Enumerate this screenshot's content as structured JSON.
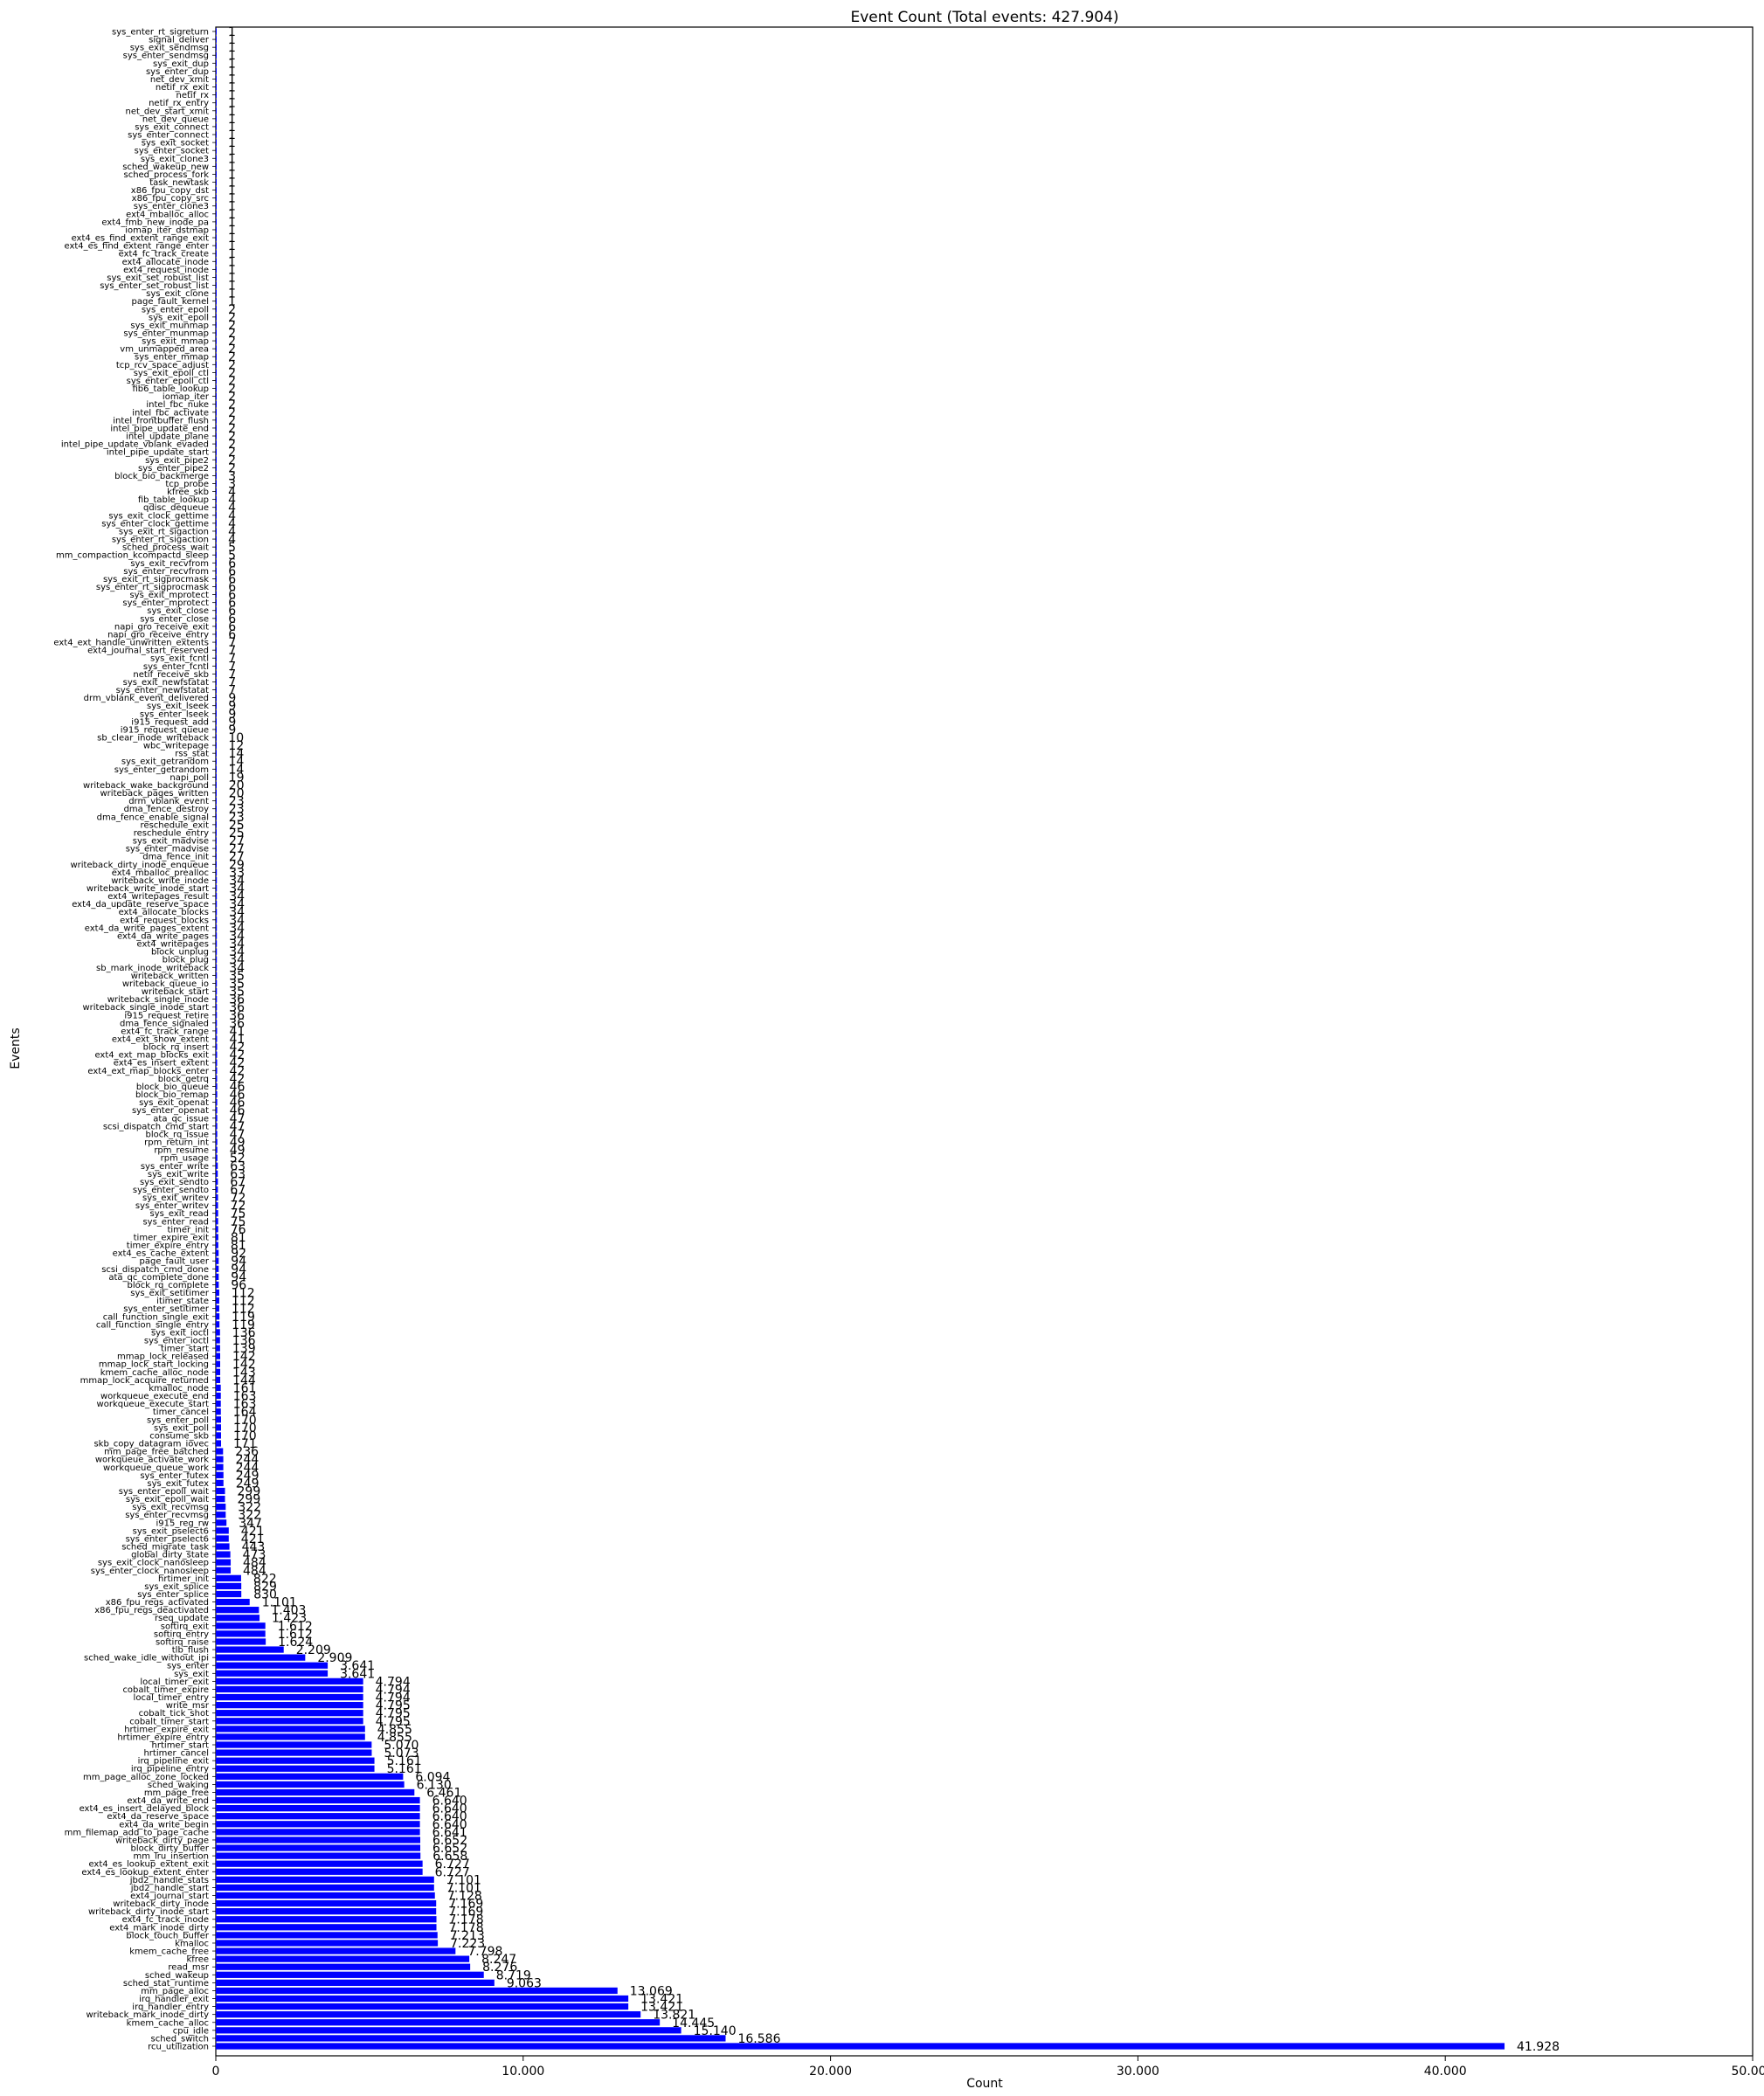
{
  "chart_data": {
    "type": "bar",
    "orientation": "horizontal",
    "title": "Event Count (Total events: 427.904)",
    "xlabel": "Count",
    "ylabel": "Events",
    "xlim": [
      0,
      50000
    ],
    "x_ticks": [
      0,
      10000,
      20000,
      30000,
      40000,
      50000
    ],
    "x_tick_labels": [
      "0",
      "10.000",
      "20.000",
      "30.000",
      "40.000",
      "50.000"
    ],
    "grid": false,
    "bar_color": "#0000ff",
    "value_label_format": "thousands separator '.'",
    "bars": [
      [
        "sys_enter_rt_sigreturn",
        1
      ],
      [
        "signal_deliver",
        1
      ],
      [
        "sys_exit_sendmsg",
        1
      ],
      [
        "sys_enter_sendmsg",
        1
      ],
      [
        "sys_exit_dup",
        1
      ],
      [
        "sys_enter_dup",
        1
      ],
      [
        "net_dev_xmit",
        1
      ],
      [
        "netif_rx_exit",
        1
      ],
      [
        "netif_rx",
        1
      ],
      [
        "netif_rx_entry",
        1
      ],
      [
        "net_dev_start_xmit",
        1
      ],
      [
        "net_dev_queue",
        1
      ],
      [
        "sys_exit_connect",
        1
      ],
      [
        "sys_enter_connect",
        1
      ],
      [
        "sys_exit_socket",
        1
      ],
      [
        "sys_enter_socket",
        1
      ],
      [
        "sys_exit_clone3",
        1
      ],
      [
        "sched_wakeup_new",
        1
      ],
      [
        "sched_process_fork",
        1
      ],
      [
        "task_newtask",
        1
      ],
      [
        "x86_fpu_copy_dst",
        1
      ],
      [
        "x86_fpu_copy_src",
        1
      ],
      [
        "sys_enter_clone3",
        1
      ],
      [
        "ext4_mballoc_alloc",
        1
      ],
      [
        "ext4_fmb_new_inode_pa",
        1
      ],
      [
        "iomap_iter_dstmap",
        1
      ],
      [
        "ext4_es_find_extent_range_exit",
        1
      ],
      [
        "ext4_es_find_extent_range_enter",
        1
      ],
      [
        "ext4_fc_track_create",
        1
      ],
      [
        "ext4_allocate_inode",
        1
      ],
      [
        "ext4_request_inode",
        1
      ],
      [
        "sys_exit_set_robust_list",
        1
      ],
      [
        "sys_enter_set_robust_list",
        1
      ],
      [
        "sys_exit_clone",
        1
      ],
      [
        "page_fault_kernel",
        1
      ],
      [
        "sys_enter_epoll",
        2
      ],
      [
        "sys_exit_epoll",
        2
      ],
      [
        "sys_exit_munmap",
        2
      ],
      [
        "sys_enter_munmap",
        2
      ],
      [
        "sys_exit_mmap",
        2
      ],
      [
        "vm_unmapped_area",
        2
      ],
      [
        "sys_enter_mmap",
        2
      ],
      [
        "tcp_rcv_space_adjust",
        2
      ],
      [
        "sys_exit_epoll_ctl",
        2
      ],
      [
        "sys_enter_epoll_ctl",
        2
      ],
      [
        "fib6_table_lookup",
        2
      ],
      [
        "iomap_iter",
        2
      ],
      [
        "intel_fbc_nuke",
        2
      ],
      [
        "intel_fbc_activate",
        2
      ],
      [
        "intel_frontbuffer_flush",
        2
      ],
      [
        "intel_pipe_update_end",
        2
      ],
      [
        "intel_update_plane",
        2
      ],
      [
        "intel_pipe_update_vblank_evaded",
        2
      ],
      [
        "intel_pipe_update_start",
        2
      ],
      [
        "sys_exit_pipe2",
        2
      ],
      [
        "sys_enter_pipe2",
        2
      ],
      [
        "block_bio_backmerge",
        3
      ],
      [
        "tcp_probe",
        3
      ],
      [
        "kfree_skb",
        4
      ],
      [
        "fib_table_lookup",
        4
      ],
      [
        "qdisc_dequeue",
        4
      ],
      [
        "sys_exit_clock_gettime",
        4
      ],
      [
        "sys_enter_clock_gettime",
        4
      ],
      [
        "sys_exit_rt_sigaction",
        4
      ],
      [
        "sys_enter_rt_sigaction",
        4
      ],
      [
        "sched_process_wait",
        5
      ],
      [
        "mm_compaction_kcompactd_sleep",
        5
      ],
      [
        "sys_exit_recvfrom",
        6
      ],
      [
        "sys_enter_recvfrom",
        6
      ],
      [
        "sys_exit_rt_sigprocmask",
        6
      ],
      [
        "sys_enter_rt_sigprocmask",
        6
      ],
      [
        "sys_exit_mprotect",
        6
      ],
      [
        "sys_enter_mprotect",
        6
      ],
      [
        "sys_exit_close",
        6
      ],
      [
        "sys_enter_close",
        6
      ],
      [
        "napi_gro_receive_exit",
        6
      ],
      [
        "napi_gro_receive_entry",
        6
      ],
      [
        "ext4_ext_handle_unwritten_extents",
        7
      ],
      [
        "ext4_journal_start_reserved",
        7
      ],
      [
        "sys_exit_fcntl",
        7
      ],
      [
        "sys_enter_fcntl",
        7
      ],
      [
        "netif_receive_skb",
        7
      ],
      [
        "sys_exit_newfstatat",
        7
      ],
      [
        "sys_enter_newfstatat",
        7
      ],
      [
        "drm_vblank_event_delivered",
        9
      ],
      [
        "sys_exit_lseek",
        9
      ],
      [
        "sys_enter_lseek",
        9
      ],
      [
        "i915_request_add",
        9
      ],
      [
        "i915_request_queue",
        9
      ],
      [
        "sb_clear_inode_writeback",
        10
      ],
      [
        "wbc_writepage",
        12
      ],
      [
        "rss_stat",
        14
      ],
      [
        "sys_exit_getrandom",
        14
      ],
      [
        "sys_enter_getrandom",
        14
      ],
      [
        "napi_poll",
        19
      ],
      [
        "writeback_wake_background",
        20
      ],
      [
        "writeback_pages_written",
        20
      ],
      [
        "drm_vblank_event",
        23
      ],
      [
        "dma_fence_destroy",
        23
      ],
      [
        "dma_fence_enable_signal",
        23
      ],
      [
        "reschedule_exit",
        25
      ],
      [
        "reschedule_entry",
        25
      ],
      [
        "sys_exit_madvise",
        27
      ],
      [
        "sys_enter_madvise",
        27
      ],
      [
        "dma_fence_init",
        27
      ],
      [
        "writeback_dirty_inode_enqueue",
        29
      ],
      [
        "ext4_mballoc_prealloc",
        33
      ],
      [
        "writeback_write_inode",
        34
      ],
      [
        "writeback_write_inode_start",
        34
      ],
      [
        "ext4_writepages_result",
        34
      ],
      [
        "ext4_da_update_reserve_space",
        34
      ],
      [
        "ext4_allocate_blocks",
        34
      ],
      [
        "ext4_request_blocks",
        34
      ],
      [
        "ext4_da_write_pages_extent",
        34
      ],
      [
        "ext4_da_write_pages",
        34
      ],
      [
        "ext4_writepages",
        34
      ],
      [
        "block_unplug",
        34
      ],
      [
        "block_plug",
        34
      ],
      [
        "sb_mark_inode_writeback",
        34
      ],
      [
        "writeback_written",
        35
      ],
      [
        "writeback_queue_io",
        35
      ],
      [
        "writeback_start",
        35
      ],
      [
        "writeback_single_inode",
        36
      ],
      [
        "writeback_single_inode_start",
        36
      ],
      [
        "i915_request_retire",
        36
      ],
      [
        "dma_fence_signaled",
        36
      ],
      [
        "ext4_fc_track_range",
        41
      ],
      [
        "ext4_ext_show_extent",
        41
      ],
      [
        "block_rq_insert",
        42
      ],
      [
        "ext4_ext_map_blocks_exit",
        42
      ],
      [
        "ext4_es_insert_extent",
        42
      ],
      [
        "ext4_ext_map_blocks_enter",
        42
      ],
      [
        "block_getrq",
        42
      ],
      [
        "block_bio_queue",
        46
      ],
      [
        "block_bio_remap",
        46
      ],
      [
        "sys_exit_openat",
        46
      ],
      [
        "sys_enter_openat",
        46
      ],
      [
        "ata_qc_issue",
        47
      ],
      [
        "scsi_dispatch_cmd_start",
        47
      ],
      [
        "block_rq_issue",
        47
      ],
      [
        "rpm_return_int",
        49
      ],
      [
        "rpm_resume",
        49
      ],
      [
        "rpm_usage",
        52
      ],
      [
        "sys_enter_write",
        63
      ],
      [
        "sys_exit_write",
        63
      ],
      [
        "sys_exit_sendto",
        67
      ],
      [
        "sys_enter_sendto",
        67
      ],
      [
        "sys_exit_writev",
        72
      ],
      [
        "sys_enter_writev",
        72
      ],
      [
        "sys_exit_read",
        75
      ],
      [
        "sys_enter_read",
        75
      ],
      [
        "timer_init",
        76
      ],
      [
        "timer_expire_exit",
        81
      ],
      [
        "timer_expire_entry",
        81
      ],
      [
        "ext4_es_cache_extent",
        92
      ],
      [
        "page_fault_user",
        94
      ],
      [
        "scsi_dispatch_cmd_done",
        94
      ],
      [
        "ata_qc_complete_done",
        94
      ],
      [
        "block_rq_complete",
        96
      ],
      [
        "sys_exit_setitimer",
        112
      ],
      [
        "itimer_state",
        112
      ],
      [
        "sys_enter_setitimer",
        112
      ],
      [
        "call_function_single_exit",
        119
      ],
      [
        "call_function_single_entry",
        119
      ],
      [
        "sys_exit_ioctl",
        136
      ],
      [
        "sys_enter_ioctl",
        136
      ],
      [
        "timer_start",
        139
      ],
      [
        "mmap_lock_released",
        142
      ],
      [
        "mmap_lock_start_locking",
        142
      ],
      [
        "kmem_cache_alloc_node",
        143
      ],
      [
        "mmap_lock_acquire_returned",
        144
      ],
      [
        "kmalloc_node",
        161
      ],
      [
        "workqueue_execute_end",
        163
      ],
      [
        "workqueue_execute_start",
        163
      ],
      [
        "timer_cancel",
        164
      ],
      [
        "sys_enter_poll",
        170
      ],
      [
        "sys_exit_poll",
        170
      ],
      [
        "consume_skb",
        170
      ],
      [
        "skb_copy_datagram_iovec",
        171
      ],
      [
        "mm_page_free_batched",
        236
      ],
      [
        "workqueue_activate_work",
        244
      ],
      [
        "workqueue_queue_work",
        244
      ],
      [
        "sys_enter_futex",
        249
      ],
      [
        "sys_exit_futex",
        249
      ],
      [
        "sys_enter_epoll_wait",
        299
      ],
      [
        "sys_exit_epoll_wait",
        299
      ],
      [
        "sys_exit_recvmsg",
        322
      ],
      [
        "sys_enter_recvmsg",
        322
      ],
      [
        "i915_reg_rw",
        347
      ],
      [
        "sys_exit_pselect6",
        421
      ],
      [
        "sys_enter_pselect6",
        421
      ],
      [
        "sched_migrate_task",
        443
      ],
      [
        "global_dirty_state",
        473
      ],
      [
        "sys_exit_clock_nanosleep",
        484
      ],
      [
        "sys_enter_clock_nanosleep",
        484
      ],
      [
        "hrtimer_init",
        822
      ],
      [
        "sys_exit_splice",
        829
      ],
      [
        "sys_enter_splice",
        830
      ],
      [
        "x86_fpu_regs_activated",
        1101
      ],
      [
        "x86_fpu_regs_deactivated",
        1403
      ],
      [
        "rseq_update",
        1423
      ],
      [
        "softirq_exit",
        1612
      ],
      [
        "softirq_entry",
        1612
      ],
      [
        "softirq_raise",
        1624
      ],
      [
        "tlb_flush",
        2209
      ],
      [
        "sched_wake_idle_without_ipi",
        2909
      ],
      [
        "sys_enter",
        3641
      ],
      [
        "sys_exit",
        3641
      ],
      [
        "local_timer_exit",
        4794
      ],
      [
        "cobalt_timer_expire",
        4794
      ],
      [
        "local_timer_entry",
        4794
      ],
      [
        "write_msr",
        4795
      ],
      [
        "cobalt_tick_shot",
        4795
      ],
      [
        "cobalt_timer_start",
        4795
      ],
      [
        "hrtimer_expire_exit",
        4855
      ],
      [
        "hrtimer_expire_entry",
        4855
      ],
      [
        "hrtimer_start",
        5070
      ],
      [
        "hrtimer_cancel",
        5073
      ],
      [
        "irq_pipeline_exit",
        5161
      ],
      [
        "irq_pipeline_entry",
        5161
      ],
      [
        "mm_page_alloc_zone_locked",
        6094
      ],
      [
        "sched_waking",
        6130
      ],
      [
        "mm_page_free",
        6461
      ],
      [
        "ext4_da_write_end",
        6640
      ],
      [
        "ext4_es_insert_delayed_block",
        6640
      ],
      [
        "ext4_da_reserve_space",
        6640
      ],
      [
        "ext4_da_write_begin",
        6640
      ],
      [
        "mm_filemap_add_to_page_cache",
        6641
      ],
      [
        "writeback_dirty_page",
        6652
      ],
      [
        "block_dirty_buffer",
        6652
      ],
      [
        "mm_lru_insertion",
        6658
      ],
      [
        "ext4_es_lookup_extent_exit",
        6727
      ],
      [
        "ext4_es_lookup_extent_enter",
        6727
      ],
      [
        "jbd2_handle_stats",
        7101
      ],
      [
        "jbd2_handle_start",
        7101
      ],
      [
        "ext4_journal_start",
        7128
      ],
      [
        "writeback_dirty_inode",
        7169
      ],
      [
        "writeback_dirty_inode_start",
        7169
      ],
      [
        "ext4_fc_track_inode",
        7178
      ],
      [
        "ext4_mark_inode_dirty",
        7178
      ],
      [
        "block_touch_buffer",
        7213
      ],
      [
        "kmalloc",
        7223
      ],
      [
        "kmem_cache_free",
        7798
      ],
      [
        "kfree",
        8247
      ],
      [
        "read_msr",
        8276
      ],
      [
        "sched_wakeup",
        8719
      ],
      [
        "sched_stat_runtime",
        9063
      ],
      [
        "mm_page_alloc",
        13069
      ],
      [
        "irq_handler_exit",
        13421
      ],
      [
        "irq_handler_entry",
        13421
      ],
      [
        "writeback_mark_inode_dirty",
        13821
      ],
      [
        "kmem_cache_alloc",
        14445
      ],
      [
        "cpu_idle",
        15140
      ],
      [
        "sched_switch",
        16586
      ],
      [
        "rcu_utilization",
        41928
      ]
    ]
  }
}
